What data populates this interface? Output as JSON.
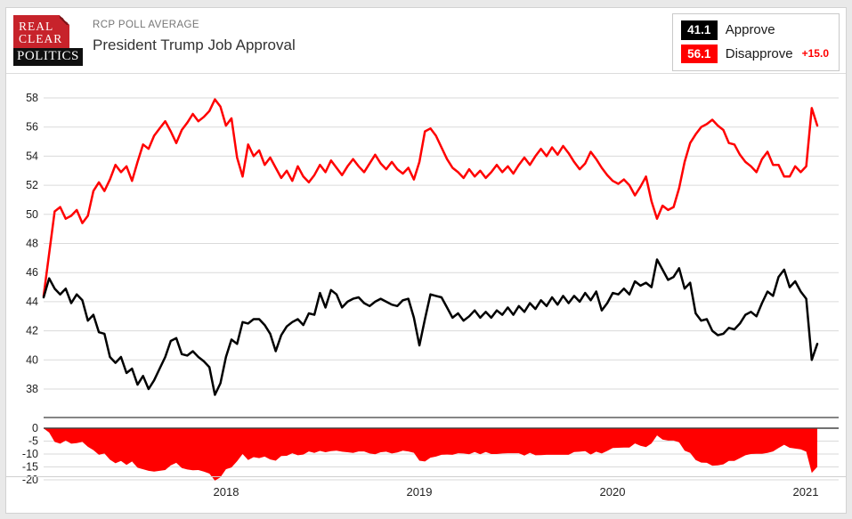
{
  "header": {
    "logo": {
      "line1": "REAL",
      "line2": "CLEAR",
      "line3": "POLITICS"
    },
    "eyebrow": "RCP POLL AVERAGE",
    "title": "President Trump Job Approval"
  },
  "legend": {
    "approve": {
      "value": "41.1",
      "label": "Approve"
    },
    "disapprove": {
      "value": "56.1",
      "label": "Disapprove",
      "spread": "+15.0"
    }
  },
  "colors": {
    "approve_line": "#000000",
    "disapprove_line": "#ff0000",
    "spread_fill": "#ff0000",
    "logo_red": "#c7232b",
    "grid": "#dadada",
    "axis": "#3c3c3c",
    "tick_text": "#1d1d1d"
  },
  "chart_data": {
    "type": "line",
    "title": "President Trump Job Approval",
    "x_range_note": "late Jan 2017 through Jan 2021, sampled evenly",
    "x_ticks": [
      "2018",
      "2019",
      "2020",
      "2021"
    ],
    "main_axis": {
      "ticks": [
        58,
        56,
        54,
        52,
        50,
        48,
        46,
        44,
        42,
        40,
        38
      ],
      "grid": true
    },
    "spread_axis": {
      "ticks": [
        0,
        -5,
        -10,
        -15,
        -20
      ],
      "grid": true
    },
    "legend_position": "top-right",
    "series": [
      {
        "name": "Approve",
        "color": "#000000",
        "values": [
          44.3,
          45.6,
          44.9,
          44.5,
          44.9,
          43.9,
          44.5,
          44.1,
          42.7,
          43.1,
          41.9,
          41.8,
          40.2,
          39.8,
          40.2,
          39.1,
          39.4,
          38.3,
          38.9,
          38.0,
          38.6,
          39.4,
          40.2,
          41.3,
          41.5,
          40.4,
          40.3,
          40.6,
          40.2,
          39.9,
          39.5,
          37.6,
          38.4,
          40.2,
          41.4,
          41.1,
          42.6,
          42.5,
          42.8,
          42.8,
          42.4,
          41.8,
          40.6,
          41.7,
          42.3,
          42.6,
          42.8,
          42.4,
          43.2,
          43.1,
          44.6,
          43.6,
          44.8,
          44.5,
          43.6,
          44.0,
          44.2,
          44.3,
          43.9,
          43.7,
          44.0,
          44.2,
          44.0,
          43.8,
          43.7,
          44.1,
          44.2,
          42.9,
          41.0,
          42.8,
          44.5,
          44.4,
          44.3,
          43.6,
          42.9,
          43.2,
          42.7,
          43.0,
          43.4,
          42.9,
          43.3,
          42.9,
          43.4,
          43.1,
          43.6,
          43.1,
          43.7,
          43.3,
          43.9,
          43.5,
          44.1,
          43.7,
          44.3,
          43.8,
          44.4,
          43.9,
          44.4,
          44.0,
          44.6,
          44.1,
          44.7,
          43.4,
          43.9,
          44.6,
          44.5,
          44.9,
          44.5,
          45.4,
          45.1,
          45.3,
          45.0,
          46.9,
          46.2,
          45.5,
          45.7,
          46.3,
          44.9,
          45.3,
          43.2,
          42.7,
          42.8,
          42.0,
          41.7,
          41.8,
          42.2,
          42.1,
          42.5,
          43.1,
          43.3,
          43.0,
          43.9,
          44.7,
          44.4,
          45.7,
          46.2,
          45.0,
          45.4,
          44.7,
          44.2,
          40.0,
          41.1
        ]
      },
      {
        "name": "Disapprove",
        "color": "#ff0000",
        "values": [
          44.4,
          47.3,
          50.2,
          50.5,
          49.7,
          49.9,
          50.3,
          49.4,
          49.9,
          51.6,
          52.2,
          51.6,
          52.4,
          53.4,
          52.9,
          53.3,
          52.3,
          53.6,
          54.8,
          54.5,
          55.4,
          55.9,
          56.4,
          55.7,
          54.9,
          55.8,
          56.3,
          56.9,
          56.4,
          56.7,
          57.1,
          57.9,
          57.4,
          56.1,
          56.6,
          53.9,
          52.6,
          54.8,
          54.0,
          54.4,
          53.4,
          53.9,
          53.2,
          52.5,
          53.0,
          52.3,
          53.3,
          52.6,
          52.2,
          52.7,
          53.4,
          52.9,
          53.7,
          53.2,
          52.7,
          53.3,
          53.8,
          53.3,
          52.9,
          53.5,
          54.1,
          53.5,
          53.1,
          53.6,
          53.1,
          52.8,
          53.2,
          52.4,
          53.6,
          55.7,
          55.9,
          55.4,
          54.6,
          53.8,
          53.2,
          52.9,
          52.5,
          53.1,
          52.6,
          53.0,
          52.5,
          52.9,
          53.4,
          52.9,
          53.3,
          52.8,
          53.4,
          53.9,
          53.4,
          54.0,
          54.5,
          54.0,
          54.6,
          54.1,
          54.7,
          54.2,
          53.6,
          53.1,
          53.5,
          54.3,
          53.8,
          53.2,
          52.7,
          52.3,
          52.1,
          52.4,
          52.0,
          51.3,
          51.9,
          52.6,
          50.9,
          49.7,
          50.6,
          50.3,
          50.5,
          51.8,
          53.6,
          54.9,
          55.5,
          56.0,
          56.2,
          56.5,
          56.1,
          55.8,
          54.9,
          54.8,
          54.1,
          53.6,
          53.3,
          52.9,
          53.8,
          54.3,
          53.4,
          53.4,
          52.6,
          52.6,
          53.3,
          52.9,
          53.3,
          57.3,
          56.1
        ]
      }
    ],
    "spread": {
      "name": "Spread",
      "color": "#ff0000",
      "derivation": "approve minus disapprove",
      "current": "+15.0"
    }
  }
}
